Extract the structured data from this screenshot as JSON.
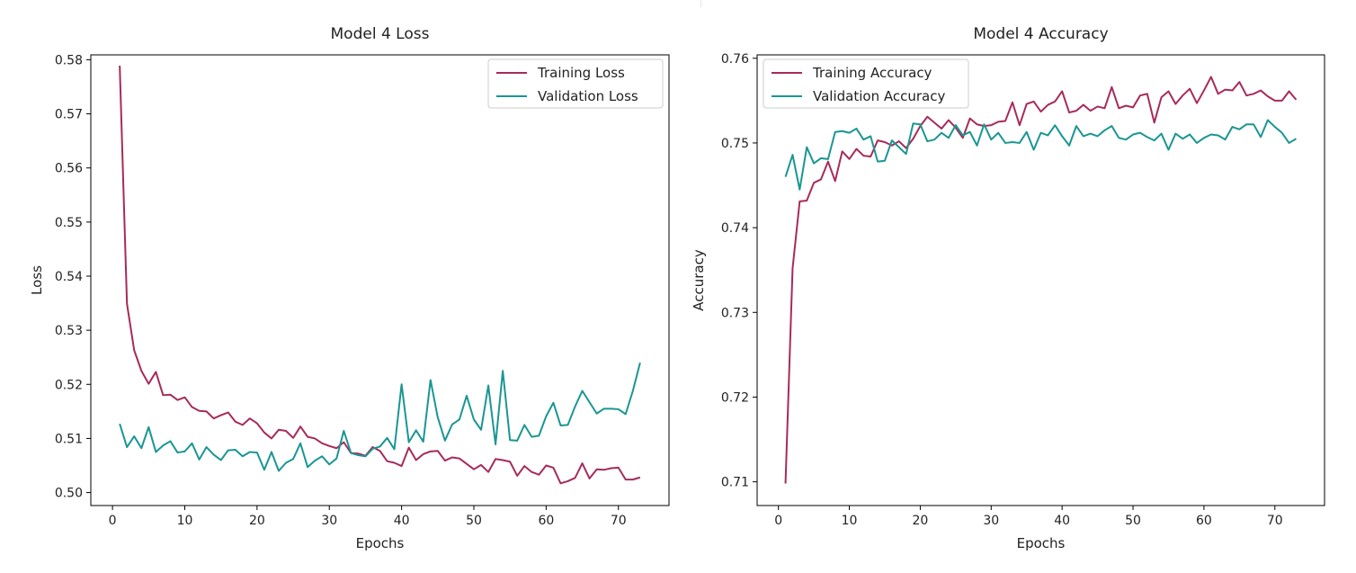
{
  "chart_data": [
    {
      "type": "line",
      "title": "Model 4 Loss",
      "xlabel": "Epochs",
      "ylabel": "Loss",
      "xlim": [
        -3,
        77
      ],
      "ylim": [
        0.4976,
        0.5809
      ],
      "xticks": [
        0,
        10,
        20,
        30,
        40,
        50,
        60,
        70
      ],
      "yticks": [
        0.5,
        0.51,
        0.52,
        0.53,
        0.54,
        0.55,
        0.56,
        0.57,
        0.58
      ],
      "ytick_labels": [
        "0.50",
        "0.51",
        "0.52",
        "0.53",
        "0.54",
        "0.55",
        "0.56",
        "0.57",
        "0.58"
      ],
      "legend": "top-right",
      "grid": false,
      "x_start": 1,
      "series": [
        {
          "name": "Training Loss",
          "color": "#a62b5a",
          "values": [
            0.5789,
            0.5349,
            0.5263,
            0.5225,
            0.5201,
            0.5223,
            0.518,
            0.5181,
            0.5171,
            0.5176,
            0.5158,
            0.5151,
            0.515,
            0.5137,
            0.5143,
            0.5148,
            0.5131,
            0.5125,
            0.5137,
            0.5128,
            0.5111,
            0.51,
            0.5116,
            0.5114,
            0.5101,
            0.5122,
            0.5103,
            0.51,
            0.5091,
            0.5086,
            0.5082,
            0.5093,
            0.5073,
            0.5072,
            0.5068,
            0.5084,
            0.5077,
            0.5058,
            0.5055,
            0.5049,
            0.5083,
            0.506,
            0.5071,
            0.5076,
            0.5077,
            0.5059,
            0.5065,
            0.5063,
            0.5053,
            0.5043,
            0.5051,
            0.5038,
            0.5062,
            0.506,
            0.5057,
            0.5031,
            0.5049,
            0.5038,
            0.5033,
            0.505,
            0.5046,
            0.5017,
            0.5021,
            0.5027,
            0.5054,
            0.5026,
            0.5043,
            0.5042,
            0.5045,
            0.5046,
            0.5024,
            0.5024,
            0.5028
          ]
        },
        {
          "name": "Validation Loss",
          "color": "#1a9693",
          "values": [
            0.5127,
            0.5084,
            0.5104,
            0.5082,
            0.5121,
            0.5075,
            0.5087,
            0.5095,
            0.5074,
            0.5076,
            0.5091,
            0.5061,
            0.5084,
            0.507,
            0.506,
            0.5078,
            0.5079,
            0.5067,
            0.5075,
            0.5074,
            0.5042,
            0.5075,
            0.504,
            0.5055,
            0.5062,
            0.5091,
            0.5047,
            0.5059,
            0.5067,
            0.5052,
            0.5063,
            0.5114,
            0.5073,
            0.5069,
            0.5067,
            0.5081,
            0.5085,
            0.5101,
            0.508,
            0.52,
            0.5093,
            0.5115,
            0.5094,
            0.5208,
            0.5139,
            0.5096,
            0.5126,
            0.5135,
            0.5179,
            0.5135,
            0.5116,
            0.5198,
            0.5089,
            0.5225,
            0.5097,
            0.5096,
            0.5125,
            0.5103,
            0.5105,
            0.5141,
            0.5166,
            0.5124,
            0.5125,
            0.5159,
            0.5188,
            0.5167,
            0.5146,
            0.5155,
            0.5155,
            0.5154,
            0.5145,
            0.5188,
            0.524
          ]
        }
      ]
    },
    {
      "type": "line",
      "title": "Model 4 Accuracy",
      "xlabel": "Epochs",
      "ylabel": "Accuracy",
      "xlim": [
        -3,
        77
      ],
      "ylim": [
        0.7072,
        0.7604
      ],
      "xticks": [
        0,
        10,
        20,
        30,
        40,
        50,
        60,
        70
      ],
      "yticks": [
        0.71,
        0.72,
        0.73,
        0.74,
        0.75,
        0.76
      ],
      "ytick_labels": [
        "0.71",
        "0.72",
        "0.73",
        "0.74",
        "0.75",
        "0.76"
      ],
      "legend": "top-left",
      "grid": false,
      "x_start": 1,
      "series": [
        {
          "name": "Training Accuracy",
          "color": "#a62b5a",
          "values": [
            0.7098,
            0.7352,
            0.7431,
            0.7432,
            0.7453,
            0.7457,
            0.7478,
            0.7455,
            0.749,
            0.7481,
            0.7493,
            0.7485,
            0.7484,
            0.7503,
            0.7501,
            0.7497,
            0.7502,
            0.7494,
            0.7505,
            0.752,
            0.7531,
            0.7524,
            0.7517,
            0.7527,
            0.7518,
            0.7506,
            0.7529,
            0.7522,
            0.752,
            0.7521,
            0.7525,
            0.7526,
            0.7548,
            0.7521,
            0.7546,
            0.7549,
            0.7537,
            0.7545,
            0.7549,
            0.7561,
            0.7536,
            0.7538,
            0.7545,
            0.7538,
            0.7543,
            0.7541,
            0.7566,
            0.7541,
            0.7544,
            0.7542,
            0.7556,
            0.7558,
            0.7524,
            0.7554,
            0.7561,
            0.7546,
            0.7556,
            0.7564,
            0.7547,
            0.7562,
            0.7578,
            0.7558,
            0.7563,
            0.7562,
            0.7572,
            0.7556,
            0.7558,
            0.7562,
            0.7555,
            0.755,
            0.755,
            0.7561,
            0.7551
          ]
        },
        {
          "name": "Validation Accuracy",
          "color": "#1a9693",
          "values": [
            0.746,
            0.7486,
            0.7445,
            0.7495,
            0.7476,
            0.7482,
            0.7481,
            0.7513,
            0.7514,
            0.7512,
            0.7517,
            0.7504,
            0.7508,
            0.7478,
            0.7479,
            0.7503,
            0.7495,
            0.7487,
            0.7523,
            0.7522,
            0.7502,
            0.7504,
            0.7512,
            0.7506,
            0.7521,
            0.7509,
            0.7513,
            0.7497,
            0.7522,
            0.7504,
            0.7512,
            0.75,
            0.7501,
            0.75,
            0.7513,
            0.7492,
            0.7512,
            0.7509,
            0.7521,
            0.7508,
            0.7497,
            0.752,
            0.7508,
            0.7511,
            0.7508,
            0.7515,
            0.752,
            0.7506,
            0.7504,
            0.751,
            0.7512,
            0.7507,
            0.7503,
            0.7511,
            0.7492,
            0.7511,
            0.7505,
            0.751,
            0.75,
            0.7506,
            0.751,
            0.7509,
            0.7504,
            0.7519,
            0.7516,
            0.7522,
            0.7522,
            0.7507,
            0.7527,
            0.7519,
            0.7512,
            0.75,
            0.7505
          ]
        }
      ]
    }
  ]
}
